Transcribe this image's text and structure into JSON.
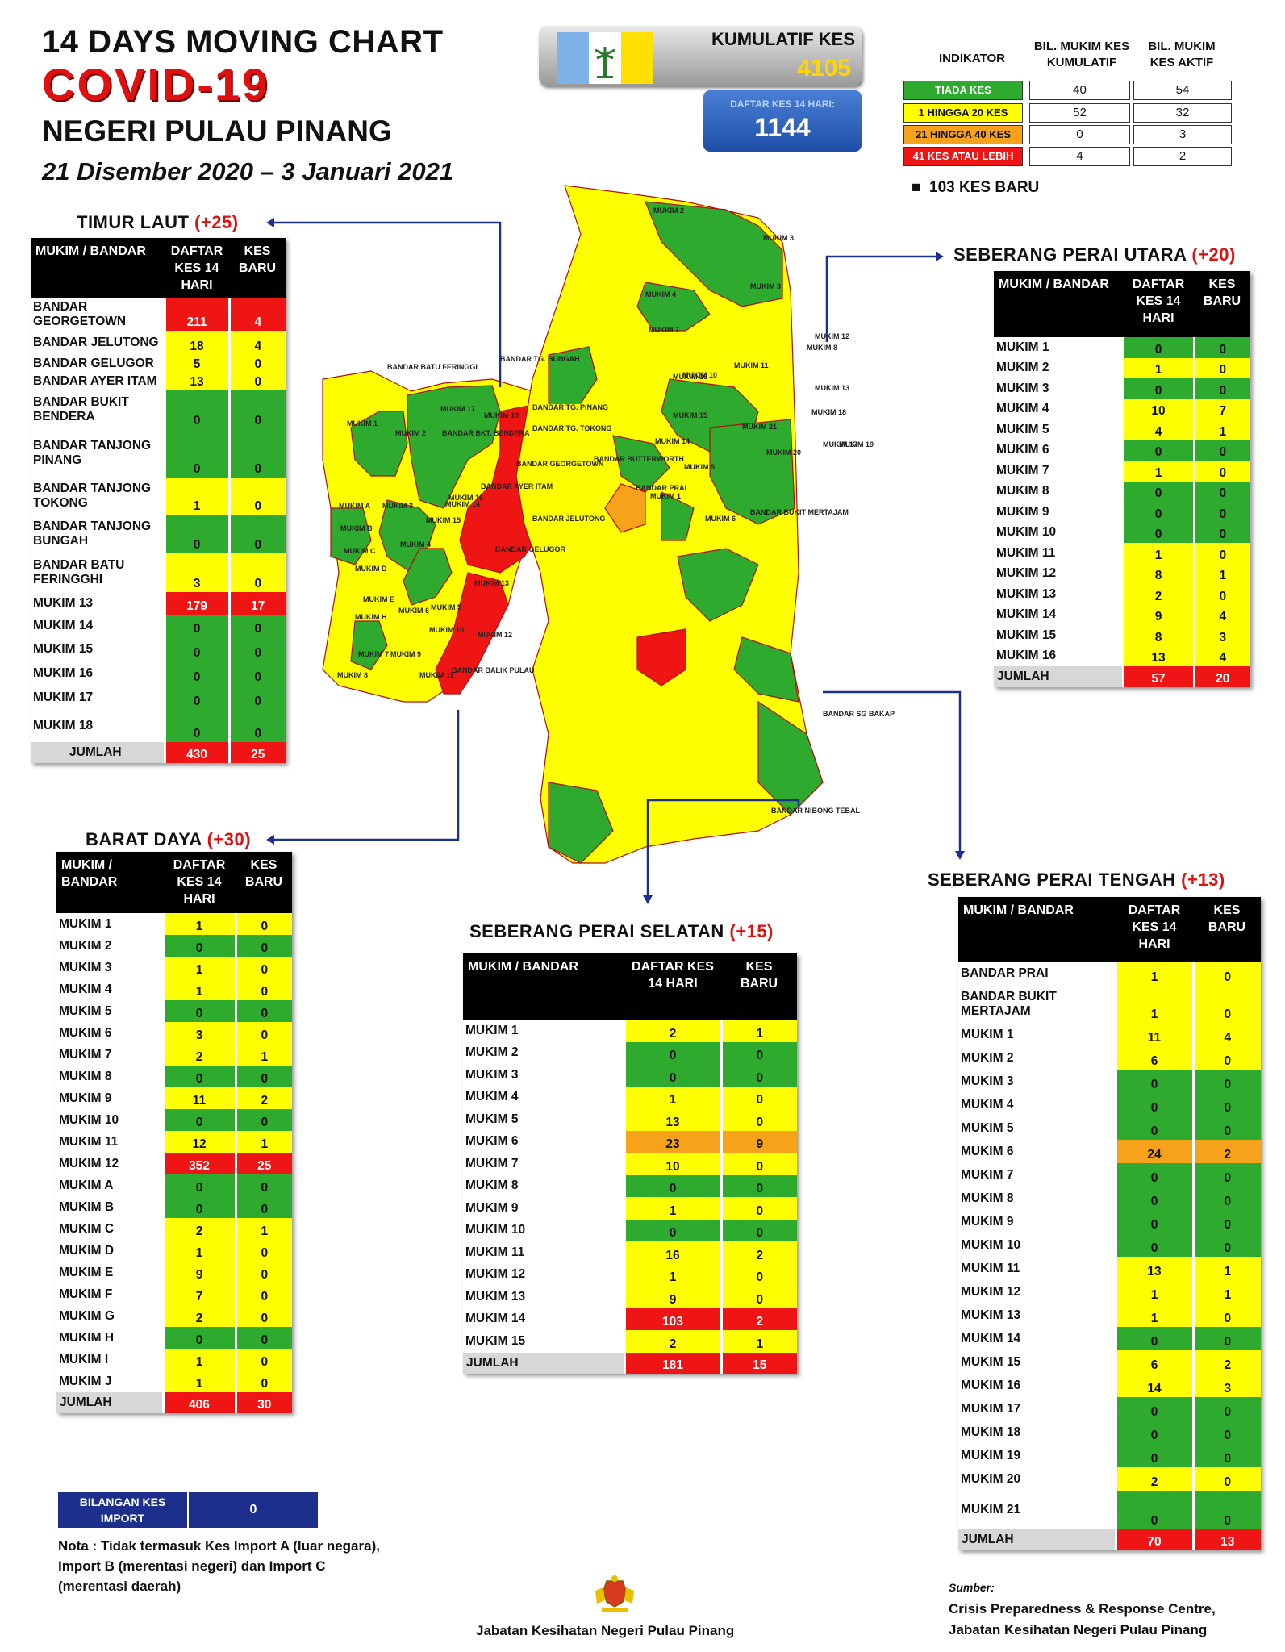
{
  "header": {
    "line1": "14  DAYS MOVING CHART",
    "line2": "COVID-19",
    "line3": "NEGERI PULAU PINANG",
    "line4": "21 Disember 2020 – 3 Januari 2021"
  },
  "cumulative": {
    "label": "KUMULATIF KES",
    "value": "4105",
    "daftar_label": "DAFTAR KES 14 HARI:",
    "daftar_value": "1144"
  },
  "legend": {
    "col_indicator": "INDIKATOR",
    "col_cumulative": "BIL. MUKIM KES KUMULATIF",
    "col_active": "BIL. MUKIM KES AKTIF",
    "rows": [
      {
        "label": "TIADA KES",
        "cumulative": "40",
        "active": "54",
        "color": "#2eaa2e"
      },
      {
        "label": "1 HINGGA 20 KES",
        "cumulative": "52",
        "active": "32",
        "color": "#ffff00"
      },
      {
        "label": "21 HINGGA 40 KES",
        "cumulative": "0",
        "active": "3",
        "color": "#f7a21b"
      },
      {
        "label": "41 KES ATAU LEBIH",
        "cumulative": "4",
        "active": "2",
        "color": "#f01515"
      }
    ],
    "new_cases": "103 KES BARU"
  },
  "colors": {
    "green": "#2eaa2e",
    "yellow": "#ffff00",
    "orange": "#f7a21b",
    "red": "#f01515"
  },
  "map_labels": {
    "island": [
      "BANDAR BATU FERINGGI",
      "BANDAR TG. BUNGAH",
      "BANDAR TG. PINANG",
      "BANDAR TG. TOKONG",
      "BANDAR BKT. BENDERA",
      "BANDAR GEORGETOWN",
      "BANDAR AYER ITAM",
      "BANDAR JELUTONG",
      "BANDAR GELUGOR",
      "MUKIM 13",
      "MUKIM 12",
      "BANDAR BALIK PULAU",
      "MUKIM 1",
      "MUKIM 2",
      "MUKIM 3",
      "MUKIM 4",
      "MUKIM 5",
      "MUKIM 6",
      "MUKIM 7",
      "MUKIM 8",
      "MUKIM 9",
      "MUKIM 10",
      "MUKIM 11",
      "MUKIM 14",
      "MUKIM 15",
      "MUKIM 16",
      "MUKIM 17",
      "MUKIM 18",
      "MUKIM A",
      "MUKIM B",
      "MUKIM C",
      "MUKIM D",
      "MUKIM E",
      "MUKIM H"
    ],
    "mainland": [
      "BANDAR BUTTERWORTH",
      "BANDAR PRAI",
      "BANDAR BUKIT MERTAJAM",
      "BANDAR SG BAKAP",
      "BANDAR NIBONG TEBAL",
      "MUKIM 1",
      "MUKIM 2",
      "MUKIM 3",
      "MUKIM 4",
      "MUKIM 5",
      "MUKIM 6",
      "MUKIM 7",
      "MUKIM 8",
      "MUKIM 9",
      "MUKIM 10",
      "MUKIM 11",
      "MUKIM 12",
      "MUKIM 13",
      "MUKIM 14",
      "MUKIM 15",
      "MUKIM 16",
      "MUKIM 17",
      "MUKIM 18",
      "MUKIM 19",
      "MUKIM 20",
      "MUKIM 21"
    ]
  },
  "tables": {
    "timur_laut": {
      "title": "TIMUR LAUT",
      "plus": "(+25)",
      "headers": [
        "MUKIM / BANDAR",
        "DAFTAR KES 14 HARI",
        "KES BARU"
      ],
      "rows": [
        {
          "name": "BANDAR GEORGETOWN",
          "d": "211",
          "k": "4",
          "dc": "r",
          "kc": "r",
          "h": 40
        },
        {
          "name": "BANDAR JELUTONG",
          "d": "18",
          "k": "4",
          "dc": "y",
          "kc": "y",
          "h": 30
        },
        {
          "name": "BANDAR GELUGOR",
          "d": "5",
          "k": "0",
          "dc": "y",
          "kc": "y",
          "h": 22
        },
        {
          "name": "BANDAR AYER ITAM",
          "d": "13",
          "k": "0",
          "dc": "y",
          "kc": "y",
          "h": 22
        },
        {
          "name": "BANDAR BUKIT BENDERA",
          "d": "0",
          "k": "0",
          "dc": "g",
          "kc": "g",
          "h": 48
        },
        {
          "name": "BANDAR TANJONG PINANG",
          "d": "0",
          "k": "0",
          "dc": "g",
          "kc": "g",
          "h": 60
        },
        {
          "name": "BANDAR TANJONG TOKONG",
          "d": "1",
          "k": "0",
          "dc": "y",
          "kc": "y",
          "h": 46
        },
        {
          "name": "BANDAR TANJONG BUNGAH",
          "d": "0",
          "k": "0",
          "dc": "g",
          "kc": "g",
          "h": 48
        },
        {
          "name": "BANDAR BATU FERINGGHI",
          "d": "3",
          "k": "0",
          "dc": "y",
          "kc": "y",
          "h": 48
        },
        {
          "name": "MUKIM 13",
          "d": "179",
          "k": "17",
          "dc": "r",
          "kc": "r",
          "h": 28
        },
        {
          "name": "MUKIM 14",
          "d": "0",
          "k": "0",
          "dc": "g",
          "kc": "g",
          "h": 28
        },
        {
          "name": "MUKIM 15",
          "d": "0",
          "k": "0",
          "dc": "g",
          "kc": "g",
          "h": 30
        },
        {
          "name": "MUKIM 16",
          "d": "0",
          "k": "0",
          "dc": "g",
          "kc": "g",
          "h": 30
        },
        {
          "name": "MUKIM 17",
          "d": "0",
          "k": "0",
          "dc": "g",
          "kc": "g",
          "h": 30
        },
        {
          "name": "MUKIM 18",
          "d": "0",
          "k": "0",
          "dc": "g",
          "kc": "g",
          "h": 40
        }
      ],
      "total": {
        "name": "JUMLAH",
        "d": "430",
        "k": "25"
      }
    },
    "barat_daya": {
      "title": "BARAT DAYA",
      "plus": "(+30)",
      "headers": [
        "MUKIM / BANDAR",
        "DAFTAR KES 14 HARI",
        "KES BARU"
      ],
      "rows": [
        {
          "name": "MUKIM 1",
          "d": "1",
          "k": "0",
          "dc": "y",
          "kc": "y"
        },
        {
          "name": "MUKIM 2",
          "d": "0",
          "k": "0",
          "dc": "g",
          "kc": "g"
        },
        {
          "name": "MUKIM 3",
          "d": "1",
          "k": "0",
          "dc": "y",
          "kc": "y"
        },
        {
          "name": "MUKIM 4",
          "d": "1",
          "k": "0",
          "dc": "y",
          "kc": "y"
        },
        {
          "name": "MUKIM 5",
          "d": "0",
          "k": "0",
          "dc": "g",
          "kc": "g"
        },
        {
          "name": "MUKIM 6",
          "d": "3",
          "k": "0",
          "dc": "y",
          "kc": "y"
        },
        {
          "name": "MUKIM 7",
          "d": "2",
          "k": "1",
          "dc": "y",
          "kc": "y"
        },
        {
          "name": "MUKIM 8",
          "d": "0",
          "k": "0",
          "dc": "g",
          "kc": "g"
        },
        {
          "name": "MUKIM 9",
          "d": "11",
          "k": "2",
          "dc": "y",
          "kc": "y"
        },
        {
          "name": "MUKIM 10",
          "d": "0",
          "k": "0",
          "dc": "g",
          "kc": "g"
        },
        {
          "name": "MUKIM 11",
          "d": "12",
          "k": "1",
          "dc": "y",
          "kc": "y"
        },
        {
          "name": "MUKIM 12",
          "d": "352",
          "k": "25",
          "dc": "r",
          "kc": "r"
        },
        {
          "name": "MUKIM A",
          "d": "0",
          "k": "0",
          "dc": "g",
          "kc": "g"
        },
        {
          "name": "MUKIM B",
          "d": "0",
          "k": "0",
          "dc": "g",
          "kc": "g"
        },
        {
          "name": "MUKIM C",
          "d": "2",
          "k": "1",
          "dc": "y",
          "kc": "y"
        },
        {
          "name": "MUKIM D",
          "d": "1",
          "k": "0",
          "dc": "y",
          "kc": "y"
        },
        {
          "name": "MUKIM E",
          "d": "9",
          "k": "0",
          "dc": "y",
          "kc": "y"
        },
        {
          "name": "MUKIM F",
          "d": "7",
          "k": "0",
          "dc": "y",
          "kc": "y"
        },
        {
          "name": "MUKIM G",
          "d": "2",
          "k": "0",
          "dc": "y",
          "kc": "y"
        },
        {
          "name": "MUKIM H",
          "d": "0",
          "k": "0",
          "dc": "g",
          "kc": "g"
        },
        {
          "name": "MUKIM I",
          "d": "1",
          "k": "0",
          "dc": "y",
          "kc": "y"
        },
        {
          "name": "MUKIM J",
          "d": "1",
          "k": "0",
          "dc": "y",
          "kc": "y"
        }
      ],
      "total": {
        "name": "JUMLAH",
        "d": "406",
        "k": "30"
      }
    },
    "spu": {
      "title": "SEBERANG PERAI UTARA",
      "plus": "(+20)",
      "headers": [
        "MUKIM / BANDAR",
        "DAFTAR KES 14 HARI",
        "KES BARU"
      ],
      "rows": [
        {
          "name": "MUKIM 1",
          "d": "0",
          "k": "0",
          "dc": "g",
          "kc": "g"
        },
        {
          "name": "MUKIM 2",
          "d": "1",
          "k": "0",
          "dc": "y",
          "kc": "y"
        },
        {
          "name": "MUKIM 3",
          "d": "0",
          "k": "0",
          "dc": "g",
          "kc": "g"
        },
        {
          "name": "MUKIM 4",
          "d": "10",
          "k": "7",
          "dc": "y",
          "kc": "y"
        },
        {
          "name": "MUKIM 5",
          "d": "4",
          "k": "1",
          "dc": "y",
          "kc": "y"
        },
        {
          "name": "MUKIM 6",
          "d": "0",
          "k": "0",
          "dc": "g",
          "kc": "g"
        },
        {
          "name": "MUKIM 7",
          "d": "1",
          "k": "0",
          "dc": "y",
          "kc": "y"
        },
        {
          "name": "MUKIM 8",
          "d": "0",
          "k": "0",
          "dc": "g",
          "kc": "g"
        },
        {
          "name": "MUKIM 9",
          "d": "0",
          "k": "0",
          "dc": "g",
          "kc": "g"
        },
        {
          "name": "MUKIM 10",
          "d": "0",
          "k": "0",
          "dc": "g",
          "kc": "g"
        },
        {
          "name": "MUKIM 11",
          "d": "1",
          "k": "0",
          "dc": "y",
          "kc": "y"
        },
        {
          "name": "MUKIM 12",
          "d": "8",
          "k": "1",
          "dc": "y",
          "kc": "y"
        },
        {
          "name": "MUKIM 13",
          "d": "2",
          "k": "0",
          "dc": "y",
          "kc": "y"
        },
        {
          "name": "MUKIM 14",
          "d": "9",
          "k": "4",
          "dc": "y",
          "kc": "y"
        },
        {
          "name": "MUKIM 15",
          "d": "8",
          "k": "3",
          "dc": "y",
          "kc": "y"
        },
        {
          "name": "MUKIM 16",
          "d": "13",
          "k": "4",
          "dc": "y",
          "kc": "y"
        }
      ],
      "total": {
        "name": "JUMLAH",
        "d": "57",
        "k": "20"
      }
    },
    "sps": {
      "title": "SEBERANG PERAI SELATAN",
      "plus": "(+15)",
      "headers": [
        "MUKIM / BANDAR",
        "DAFTAR KES 14 HARI",
        "KES BARU"
      ],
      "rows": [
        {
          "name": "MUKIM 1",
          "d": "2",
          "k": "1",
          "dc": "y",
          "kc": "y"
        },
        {
          "name": "MUKIM 2",
          "d": "0",
          "k": "0",
          "dc": "g",
          "kc": "g"
        },
        {
          "name": "MUKIM 3",
          "d": "0",
          "k": "0",
          "dc": "g",
          "kc": "g"
        },
        {
          "name": "MUKIM 4",
          "d": "1",
          "k": "0",
          "dc": "y",
          "kc": "y"
        },
        {
          "name": "MUKIM 5",
          "d": "13",
          "k": "0",
          "dc": "y",
          "kc": "y"
        },
        {
          "name": "MUKIM 6",
          "d": "23",
          "k": "9",
          "dc": "o",
          "kc": "o"
        },
        {
          "name": "MUKIM 7",
          "d": "10",
          "k": "0",
          "dc": "y",
          "kc": "y"
        },
        {
          "name": "MUKIM 8",
          "d": "0",
          "k": "0",
          "dc": "g",
          "kc": "g"
        },
        {
          "name": "MUKIM 9",
          "d": "1",
          "k": "0",
          "dc": "y",
          "kc": "y"
        },
        {
          "name": "MUKIM 10",
          "d": "0",
          "k": "0",
          "dc": "g",
          "kc": "g"
        },
        {
          "name": "MUKIM 11",
          "d": "16",
          "k": "2",
          "dc": "y",
          "kc": "y"
        },
        {
          "name": "MUKIM 12",
          "d": "1",
          "k": "0",
          "dc": "y",
          "kc": "y"
        },
        {
          "name": "MUKIM 13",
          "d": "9",
          "k": "0",
          "dc": "y",
          "kc": "y"
        },
        {
          "name": "MUKIM 14",
          "d": "103",
          "k": "2",
          "dc": "r",
          "kc": "r"
        },
        {
          "name": "MUKIM 15",
          "d": "2",
          "k": "1",
          "dc": "y",
          "kc": "y"
        }
      ],
      "total": {
        "name": "JUMLAH",
        "d": "181",
        "k": "15"
      }
    },
    "spt": {
      "title": "SEBERANG PERAI TENGAH",
      "plus": "(+13)",
      "headers": [
        "MUKIM / BANDAR",
        "DAFTAR KES 14 HARI",
        "KES BARU"
      ],
      "rows": [
        {
          "name": "BANDAR PRAI",
          "d": "1",
          "k": "0",
          "dc": "y",
          "kc": "y",
          "h": 30
        },
        {
          "name": "BANDAR BUKIT MERTAJAM",
          "d": "1",
          "k": "0",
          "dc": "y",
          "kc": "y",
          "h": 46
        },
        {
          "name": "MUKIM 1",
          "d": "11",
          "k": "4",
          "dc": "y",
          "kc": "y",
          "h": 29
        },
        {
          "name": "MUKIM 2",
          "d": "6",
          "k": "0",
          "dc": "y",
          "kc": "y",
          "h": 29
        },
        {
          "name": "MUKIM 3",
          "d": "0",
          "k": "0",
          "dc": "g",
          "kc": "g",
          "h": 29
        },
        {
          "name": "MUKIM 4",
          "d": "0",
          "k": "0",
          "dc": "g",
          "kc": "g",
          "h": 29
        },
        {
          "name": "MUKIM 5",
          "d": "0",
          "k": "0",
          "dc": "g",
          "kc": "g",
          "h": 29
        },
        {
          "name": "MUKIM 6",
          "d": "24",
          "k": "2",
          "dc": "o",
          "kc": "o",
          "h": 29
        },
        {
          "name": "MUKIM 7",
          "d": "0",
          "k": "0",
          "dc": "g",
          "kc": "g",
          "h": 29
        },
        {
          "name": "MUKIM 8",
          "d": "0",
          "k": "0",
          "dc": "g",
          "kc": "g",
          "h": 29
        },
        {
          "name": "MUKIM 9",
          "d": "0",
          "k": "0",
          "dc": "g",
          "kc": "g",
          "h": 29
        },
        {
          "name": "MUKIM 10",
          "d": "0",
          "k": "0",
          "dc": "g",
          "kc": "g",
          "h": 29
        },
        {
          "name": "MUKIM 11",
          "d": "13",
          "k": "1",
          "dc": "y",
          "kc": "y",
          "h": 29
        },
        {
          "name": "MUKIM 12",
          "d": "1",
          "k": "1",
          "dc": "y",
          "kc": "y",
          "h": 29
        },
        {
          "name": "MUKIM 13",
          "d": "1",
          "k": "0",
          "dc": "y",
          "kc": "y",
          "h": 29
        },
        {
          "name": "MUKIM 14",
          "d": "0",
          "k": "0",
          "dc": "g",
          "kc": "g",
          "h": 29
        },
        {
          "name": "MUKIM 15",
          "d": "6",
          "k": "2",
          "dc": "y",
          "kc": "y",
          "h": 29
        },
        {
          "name": "MUKIM 16",
          "d": "14",
          "k": "3",
          "dc": "y",
          "kc": "y",
          "h": 29
        },
        {
          "name": "MUKIM 17",
          "d": "0",
          "k": "0",
          "dc": "g",
          "kc": "g",
          "h": 29
        },
        {
          "name": "MUKIM 18",
          "d": "0",
          "k": "0",
          "dc": "g",
          "kc": "g",
          "h": 29
        },
        {
          "name": "MUKIM 19",
          "d": "0",
          "k": "0",
          "dc": "g",
          "kc": "g",
          "h": 29
        },
        {
          "name": "MUKIM 20",
          "d": "2",
          "k": "0",
          "dc": "y",
          "kc": "y",
          "h": 29
        },
        {
          "name": "MUKIM 21",
          "d": "0",
          "k": "0",
          "dc": "g",
          "kc": "g",
          "h": 48
        }
      ],
      "total": {
        "name": "JUMLAH",
        "d": "70",
        "k": "13"
      }
    }
  },
  "import": {
    "label": "BILANGAN KES IMPORT",
    "value": "0"
  },
  "nota": "Nota : Tidak termasuk Kes Import A (luar negara), Import B (merentasi negeri) dan Import C (merentasi daerah)",
  "footer": {
    "dept": "Jabatan Kesihatan Negeri Pulau Pinang",
    "source_label": "Sumber:",
    "source_line1": "Crisis Preparedness & Response Centre,",
    "source_line2": "Jabatan Kesihatan Negeri Pulau Pinang"
  }
}
